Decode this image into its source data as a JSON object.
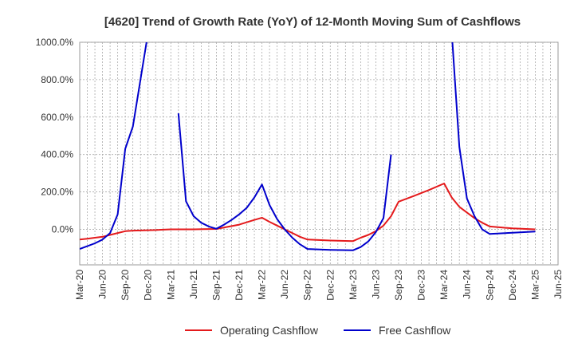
{
  "chart_data": {
    "type": "line",
    "title": "[4620]  Trend of Growth Rate (YoY) of 12-Month Moving Sum of Cashflows",
    "xlabel": "",
    "ylabel": "",
    "x_ticks": [
      "Mar-20",
      "Jun-20",
      "Sep-20",
      "Dec-20",
      "Mar-21",
      "Jun-21",
      "Sep-21",
      "Dec-21",
      "Mar-22",
      "Jun-22",
      "Sep-22",
      "Dec-22",
      "Mar-23",
      "Jun-23",
      "Sep-23",
      "Dec-23",
      "Mar-24",
      "Jun-24",
      "Sep-24",
      "Dec-24",
      "Mar-25",
      "Jun-25"
    ],
    "y_ticks": [
      {
        "value": 1000,
        "label": "1000.0%"
      },
      {
        "value": 800,
        "label": "800.0%"
      },
      {
        "value": 600,
        "label": "600.0%"
      },
      {
        "value": 400,
        "label": "400.0%"
      },
      {
        "value": 200,
        "label": "200.0%"
      },
      {
        "value": 0,
        "label": "0.0%"
      }
    ],
    "ylim": [
      -190,
      1000
    ],
    "grid": true,
    "legend_position": "bottom",
    "series": [
      {
        "name": "Operating Cashflow",
        "color": "#e41a1c",
        "points": [
          [
            "Mar-20",
            -55
          ],
          [
            "Apr-20",
            -50
          ],
          [
            "May-20",
            -45
          ],
          [
            "Jun-20",
            -40
          ],
          [
            "Jul-20",
            -30
          ],
          [
            "Aug-20",
            -20
          ],
          [
            "Sep-20",
            -10
          ],
          [
            "Oct-20",
            -7
          ],
          [
            "Nov-20",
            -6
          ],
          [
            "Dec-20",
            -5
          ],
          [
            "Jan-21",
            -4
          ],
          [
            "Feb-21",
            -2
          ],
          [
            "Mar-21",
            0
          ],
          [
            "Jun-21",
            0
          ],
          [
            "Sep-21",
            2
          ],
          [
            "Dec-21",
            25
          ],
          [
            "Feb-22",
            50
          ],
          [
            "Mar-22",
            62
          ],
          [
            "Apr-22",
            40
          ],
          [
            "May-22",
            20
          ],
          [
            "Jun-22",
            0
          ],
          [
            "Jul-22",
            -20
          ],
          [
            "Aug-22",
            -40
          ],
          [
            "Sep-22",
            -55
          ],
          [
            "Dec-22",
            -60
          ],
          [
            "Mar-23",
            -63
          ],
          [
            "Apr-23",
            -45
          ],
          [
            "May-23",
            -30
          ],
          [
            "Jun-23",
            -10
          ],
          [
            "Jul-23",
            20
          ],
          [
            "Aug-23",
            70
          ],
          [
            "Sep-23",
            148
          ],
          [
            "Nov-23",
            178
          ],
          [
            "Jan-24",
            210
          ],
          [
            "Mar-24",
            245
          ],
          [
            "Apr-24",
            170
          ],
          [
            "May-24",
            120
          ],
          [
            "Jun-24",
            90
          ],
          [
            "Jul-24",
            60
          ],
          [
            "Aug-24",
            35
          ],
          [
            "Sep-24",
            15
          ],
          [
            "Dec-24",
            5
          ],
          [
            "Mar-25",
            0
          ]
        ]
      },
      {
        "name": "Free Cashflow",
        "color": "#0000cc",
        "segments": [
          [
            [
              "Mar-20",
              -105
            ],
            [
              "Apr-20",
              -90
            ],
            [
              "May-20",
              -75
            ],
            [
              "Jun-20",
              -55
            ],
            [
              "Jul-20",
              -20
            ],
            [
              "Aug-20",
              80
            ],
            [
              "Sep-20",
              430
            ],
            [
              "Oct-20",
              550
            ],
            [
              "Nov-20",
              800
            ],
            [
              "Dec-20",
              1050
            ]
          ],
          [
            [
              "Apr-21",
              620
            ],
            [
              "May-21",
              150
            ],
            [
              "Jun-21",
              70
            ],
            [
              "Jul-21",
              35
            ],
            [
              "Aug-21",
              15
            ],
            [
              "Sep-21",
              3
            ],
            [
              "Oct-21",
              25
            ],
            [
              "Nov-21",
              50
            ],
            [
              "Dec-21",
              80
            ],
            [
              "Jan-22",
              115
            ],
            [
              "Feb-22",
              170
            ],
            [
              "Mar-22",
              240
            ],
            [
              "Apr-22",
              130
            ],
            [
              "May-22",
              55
            ],
            [
              "Jun-22",
              0
            ],
            [
              "Jul-22",
              -45
            ],
            [
              "Aug-22",
              -80
            ],
            [
              "Sep-22",
              -105
            ],
            [
              "Dec-22",
              -110
            ],
            [
              "Mar-23",
              -112
            ],
            [
              "Apr-23",
              -95
            ],
            [
              "May-23",
              -65
            ],
            [
              "Jun-23",
              -15
            ],
            [
              "Jul-23",
              60
            ],
            [
              "Aug-23",
              400
            ]
          ],
          [
            [
              "Apr-24",
              1050
            ],
            [
              "May-24",
              440
            ],
            [
              "Jun-24",
              165
            ],
            [
              "Jul-24",
              70
            ],
            [
              "Aug-24",
              0
            ],
            [
              "Sep-24",
              -25
            ],
            [
              "Dec-24",
              -18
            ],
            [
              "Mar-25",
              -12
            ]
          ]
        ]
      }
    ]
  }
}
